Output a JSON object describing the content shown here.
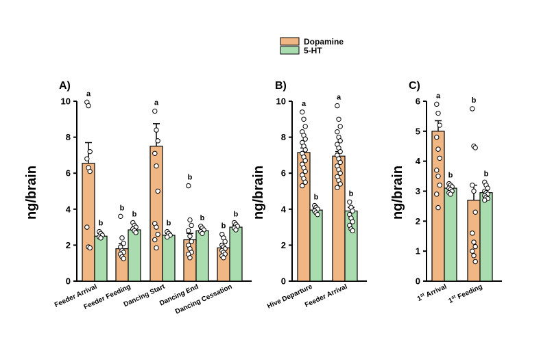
{
  "legend": {
    "items": [
      {
        "name": "Dopamine",
        "color": "#f0b784"
      },
      {
        "name": "5-HT",
        "color": "#a9dcae"
      }
    ]
  },
  "ylabel": "ng/brain",
  "chart_data": [
    {
      "type": "bar",
      "panel_label": "A)",
      "ylabel": "ng/brain",
      "ylim": [
        0,
        10
      ],
      "yticks": [
        0,
        2,
        4,
        6,
        8,
        10
      ],
      "categories": [
        "Feeder Arrival",
        "Feeder Feeding",
        "Dancing Start",
        "Dancing End",
        "Dancing Cessation"
      ],
      "series": [
        {
          "name": "Dopamine",
          "values": [
            6.55,
            1.8,
            7.5,
            2.3,
            1.85
          ],
          "errors": [
            1.15,
            0.3,
            1.25,
            0.35,
            0.25
          ],
          "letters": [
            "a",
            "b",
            "a",
            "b",
            "b"
          ],
          "points": [
            [
              9.95,
              9.75,
              7.2,
              6.8,
              6.3,
              6.1,
              3.0,
              1.9,
              1.85
            ],
            [
              3.6,
              2.4,
              2.1,
              1.9,
              1.7,
              1.6,
              1.5,
              1.35,
              1.25
            ],
            [
              9.45,
              8.4,
              7.8,
              7.1,
              6.4,
              5.0,
              3.2,
              3.0,
              2.6,
              2.3,
              1.85
            ],
            [
              5.3,
              3.4,
              3.1,
              2.8,
              2.5,
              2.2,
              2.0,
              1.8,
              1.6,
              1.5,
              1.3
            ],
            [
              2.6,
              2.4,
              2.2,
              2.0,
              1.9,
              1.8,
              1.7,
              1.6,
              1.5,
              1.4,
              1.3
            ]
          ]
        },
        {
          "name": "5-HT",
          "values": [
            2.5,
            2.85,
            2.55,
            2.8,
            3.0
          ],
          "errors": [
            0.15,
            0.12,
            0.1,
            0.12,
            0.1
          ],
          "letters": [
            "b",
            "b",
            "b",
            "b",
            "b"
          ],
          "points": [
            [
              2.75,
              2.65,
              2.55,
              2.45,
              2.4
            ],
            [
              3.25,
              3.1,
              3.0,
              2.9,
              2.8,
              2.7
            ],
            [
              2.75,
              2.65,
              2.55,
              2.45
            ],
            [
              3.05,
              2.95,
              2.85,
              2.75,
              2.65
            ],
            [
              3.25,
              3.15,
              3.05,
              2.95,
              2.85
            ]
          ]
        }
      ]
    },
    {
      "type": "bar",
      "panel_label": "B)",
      "ylabel": "ng/brain",
      "ylim": [
        0,
        10
      ],
      "yticks": [
        0,
        2,
        4,
        6,
        8,
        10
      ],
      "categories": [
        "Hive Departure",
        "Feeder Arrival"
      ],
      "series": [
        {
          "name": "Dopamine",
          "values": [
            7.15,
            6.95
          ],
          "errors": [
            0.25,
            0.25
          ],
          "letters": [
            "a",
            "a"
          ],
          "points": [
            [
              9.4,
              9.0,
              8.6,
              8.3,
              8.1,
              7.9,
              7.7,
              7.5,
              7.3,
              7.1,
              6.9,
              6.7,
              6.5,
              6.3,
              6.1,
              5.9,
              5.7,
              5.5,
              5.3
            ],
            [
              9.75,
              9.0,
              8.6,
              8.3,
              8.0,
              7.8,
              7.6,
              7.4,
              7.2,
              7.0,
              6.8,
              6.6,
              6.4,
              6.2,
              6.0,
              5.8,
              5.6,
              5.4,
              5.2
            ]
          ]
        },
        {
          "name": "5-HT",
          "values": [
            3.95,
            3.9
          ],
          "errors": [
            0.1,
            0.2
          ],
          "letters": [
            "b",
            "b"
          ],
          "points": [
            [
              4.2,
              4.1,
              4.0,
              3.9,
              3.8,
              3.7
            ],
            [
              4.4,
              4.1,
              3.9,
              3.7,
              3.5,
              3.3,
              3.1,
              2.9,
              2.8
            ]
          ]
        }
      ]
    },
    {
      "type": "bar",
      "panel_label": "C)",
      "ylabel": "ng/brain",
      "ylim": [
        0,
        6
      ],
      "yticks": [
        0,
        1,
        2,
        3,
        4,
        5,
        6
      ],
      "categories": [
        "1st Arrival",
        "1st Feeding"
      ],
      "series": [
        {
          "name": "Dopamine",
          "values": [
            5.0,
            2.7
          ],
          "errors": [
            0.35,
            0.5
          ],
          "letters": [
            "a",
            "b"
          ],
          "points": [
            [
              5.9,
              5.6,
              5.2,
              4.8,
              4.4,
              4.1,
              3.7,
              3.5,
              3.2,
              2.9,
              2.45
            ],
            [
              5.75,
              4.5,
              4.45,
              3.2,
              3.0,
              2.3,
              1.6,
              1.3,
              1.15,
              1.0,
              0.85,
              0.65
            ]
          ]
        },
        {
          "name": "5-HT",
          "values": [
            3.1,
            2.95
          ],
          "errors": [
            0.1,
            0.1
          ],
          "letters": [
            "b",
            "b"
          ],
          "points": [
            [
              3.25,
              3.2,
              3.15,
              3.1,
              3.05,
              3.0,
              2.95,
              2.9
            ],
            [
              3.3,
              3.2,
              3.1,
              3.0,
              2.95,
              2.9,
              2.85,
              2.8,
              2.75,
              2.7
            ]
          ]
        }
      ]
    }
  ]
}
